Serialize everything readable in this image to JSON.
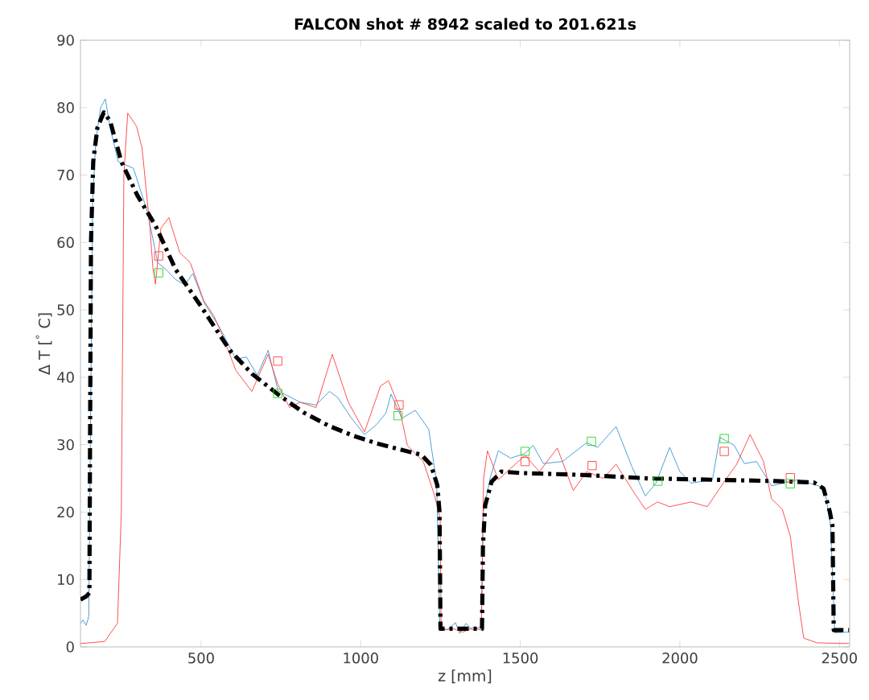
{
  "chart_data": {
    "type": "line",
    "title": "**FALCON shot # 8942 scaled to 201.621s**",
    "xlabel": "z [mm]",
    "ylabel": "Δ T [$^{°}$ C]",
    "xlim": [
      122,
      2532
    ],
    "ylim": [
      0,
      90
    ],
    "xticks": [
      500,
      1000,
      1500,
      2000,
      2500
    ],
    "yticks": [
      0,
      10,
      20,
      30,
      40,
      50,
      60,
      70,
      80,
      90
    ],
    "series": [
      {
        "color": "#4d9fd8",
        "line_style": "solid",
        "x": [
          122,
          130,
          140,
          148,
          153,
          160,
          170,
          185,
          200,
          215,
          240,
          288,
          332,
          364,
          390,
          420,
          449,
          474,
          510,
          558,
          609,
          642,
          676,
          710,
          741,
          810,
          860,
          902,
          928,
          970,
          1012,
          1050,
          1079,
          1095,
          1129,
          1171,
          1213,
          1238,
          1248,
          1270,
          1297,
          1310,
          1330,
          1350,
          1378,
          1384,
          1406,
          1431,
          1470,
          1515,
          1540,
          1572,
          1632,
          1708,
          1742,
          1800,
          1850,
          1892,
          1925,
          1968,
          2000,
          2035,
          2102,
          2125,
          2170,
          2202,
          2240,
          2287,
          2371,
          2453,
          2472,
          2478,
          2485,
          2530
        ],
        "values": [
          3.5,
          4,
          3.2,
          4.5,
          30,
          66,
          75,
          80,
          81.3,
          77,
          72,
          71,
          64.5,
          57,
          56,
          54.5,
          53.7,
          55.4,
          51,
          47.4,
          42.7,
          43,
          40.3,
          44,
          38,
          36.3,
          35.9,
          37.9,
          37,
          34,
          31.5,
          33,
          34.7,
          37.5,
          33.9,
          35.1,
          32.3,
          24.3,
          3,
          2.5,
          3.6,
          2,
          3.5,
          2.5,
          3,
          20,
          25.1,
          29.1,
          28,
          28.7,
          29.9,
          27.2,
          27.5,
          30.3,
          29.6,
          32.7,
          26.7,
          22.4,
          24.3,
          29.6,
          26,
          24.3,
          24.8,
          31.1,
          29.9,
          27.2,
          27.5,
          23.9,
          24.8,
          23.6,
          18,
          11,
          2.1,
          2.2
        ]
      },
      {
        "color": "#ff5050",
        "line_style": "solid",
        "x": [
          122,
          198,
          223,
          238,
          250,
          258,
          270,
          298,
          315,
          340,
          349,
          357,
          374,
          399,
          433,
          466,
          508,
          541,
          567,
          609,
          659,
          710,
          740,
          777,
          810,
          860,
          911,
          961,
          1012,
          1062,
          1087,
          1121,
          1146,
          1196,
          1230,
          1249,
          1252,
          1290,
          1320,
          1350,
          1378,
          1385,
          1397,
          1431,
          1470,
          1515,
          1560,
          1616,
          1666,
          1708,
          1760,
          1800,
          1859,
          1892,
          1930,
          1968,
          2035,
          2086,
          2136,
          2178,
          2220,
          2262,
          2287,
          2321,
          2346,
          2371,
          2388,
          2430,
          2530
        ],
        "values": [
          0.5,
          0.8,
          2.5,
          3.5,
          20,
          70,
          79.2,
          77.2,
          74,
          62,
          56.2,
          53.8,
          62.1,
          63.7,
          58.5,
          57,
          51.4,
          49,
          46.2,
          41,
          37.9,
          43.4,
          39,
          35.5,
          36.3,
          35.5,
          43.4,
          36.3,
          31.9,
          38.7,
          39.5,
          35.5,
          29.9,
          27.5,
          22.7,
          19,
          2.5,
          2.7,
          2.2,
          2.8,
          2.5,
          25,
          29.1,
          24.8,
          26.5,
          28.4,
          26,
          29.5,
          23.2,
          26,
          25,
          27.1,
          22.7,
          20.4,
          21.5,
          20.8,
          21.5,
          20.8,
          24.3,
          27.1,
          31.5,
          27.5,
          22,
          20.4,
          16.4,
          6.8,
          1.3,
          0.6,
          0.5
        ]
      },
      {
        "color": "#000000",
        "line_style": "dashed",
        "x": [
          122,
          140,
          150,
          152,
          155,
          162,
          175,
          195,
          215,
          250,
          300,
          357,
          420,
          500,
          590,
          660,
          740,
          820,
          900,
          978,
          1050,
          1130,
          1190,
          1220,
          1240,
          1247,
          1250,
          1380,
          1383,
          1390,
          1410,
          1440,
          1500,
          1700,
          1900,
          2100,
          2300,
          2420,
          2450,
          2470,
          2478,
          2482,
          2530
        ],
        "values": [
          7,
          7.5,
          8,
          30,
          60,
          72,
          77,
          79.3,
          78,
          72,
          67,
          62.5,
          56,
          50.5,
          44,
          40.5,
          37.5,
          34.8,
          32.8,
          31.3,
          30.2,
          29.2,
          28.5,
          27,
          24,
          20,
          2.7,
          2.7,
          15,
          21,
          24.5,
          26,
          25.8,
          25.5,
          25,
          24.8,
          24.6,
          24.4,
          23.5,
          20,
          18,
          2.5,
          2.5
        ]
      },
      {
        "type": "scatter",
        "marker": "square",
        "color": "#ff5050",
        "x": [
          367,
          740,
          1120,
          1515,
          1725,
          2139,
          2346
        ],
        "values": [
          58,
          42.4,
          35.9,
          27.5,
          26.9,
          29,
          25.1
        ]
      },
      {
        "type": "scatter",
        "marker": "square",
        "color": "#33dd33",
        "x": [
          367,
          740,
          1117,
          1515,
          1723,
          1931,
          2139,
          2346
        ],
        "values": [
          55.5,
          37.6,
          34.3,
          29,
          30.5,
          24.6,
          30.9,
          24.2
        ]
      }
    ]
  }
}
